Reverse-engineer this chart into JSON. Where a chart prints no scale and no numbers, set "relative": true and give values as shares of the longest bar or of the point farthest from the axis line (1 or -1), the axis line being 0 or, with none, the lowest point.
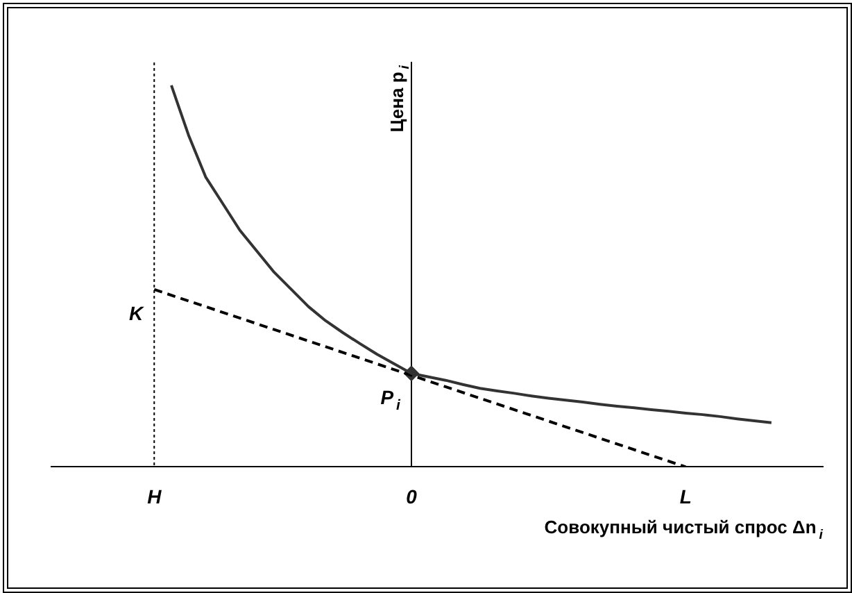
{
  "chart_data": {
    "type": "line",
    "relative": true,
    "xlabel": "Совокупный чистый спрос Δn$_{i}$",
    "ylabel": "Цена p$_{i}$",
    "categories": [
      null,
      null,
      null,
      null,
      null,
      null,
      "H",
      null,
      null,
      null,
      null,
      null,
      null,
      null,
      null,
      null,
      null,
      null,
      null,
      null,
      null,
      "0",
      null,
      null,
      null,
      null,
      null,
      null,
      null,
      null,
      null,
      null,
      null,
      null,
      null,
      null,
      null,
      "L",
      null,
      null,
      null,
      null,
      null,
      null,
      null,
      null
    ],
    "grid": false,
    "series": [
      {
        "values": [
          null,
          null,
          null,
          null,
          null,
          null,
          null,
          1.0,
          0.87,
          0.76,
          0.69,
          0.62,
          0.565,
          0.51,
          0.465,
          0.42,
          0.383,
          0.352,
          0.323,
          0.295,
          0.27,
          0.245,
          0.236,
          0.227,
          0.216,
          0.206,
          0.199,
          0.193,
          0.186,
          0.18,
          0.175,
          0.17,
          0.164,
          0.159,
          0.155,
          0.15,
          0.146,
          0.141,
          0.137,
          0.132,
          0.126,
          0.121,
          0.116,
          null,
          null,
          null
        ],
        "color": "#333333",
        "line_style": "solid"
      },
      {
        "values": [
          null,
          null,
          null,
          null,
          null,
          null,
          0.465,
          null,
          null,
          null,
          null,
          null,
          null,
          null,
          null,
          null,
          null,
          null,
          null,
          null,
          null,
          null,
          null,
          null,
          null,
          null,
          null,
          null,
          null,
          null,
          null,
          null,
          null,
          null,
          null,
          null,
          null,
          0,
          null,
          null,
          null,
          null,
          null,
          null,
          null,
          null
        ],
        "color": "#000000",
        "line_style": "dashed"
      },
      {
        "type": "scatter",
        "values": [
          null,
          null,
          null,
          null,
          null,
          null,
          null,
          null,
          null,
          null,
          null,
          null,
          null,
          null,
          null,
          null,
          null,
          null,
          null,
          null,
          null,
          0.245,
          null,
          null,
          null,
          null,
          null,
          null,
          null,
          null,
          null,
          null,
          null,
          null,
          null,
          null,
          null,
          null,
          null,
          null,
          null,
          null,
          null,
          null,
          null,
          null
        ],
        "color": "#333333",
        "marker": "diamond"
      }
    ],
    "ref_lines": [
      {
        "axis": "x",
        "value": "H",
        "color": "#000000",
        "line_style": "dotted"
      }
    ],
    "annotations": [
      {
        "text": "K",
        "x": "H",
        "y": 0.465
      },
      {
        "text": "P$_{i}$",
        "x": "0",
        "y": 0.245
      }
    ]
  }
}
